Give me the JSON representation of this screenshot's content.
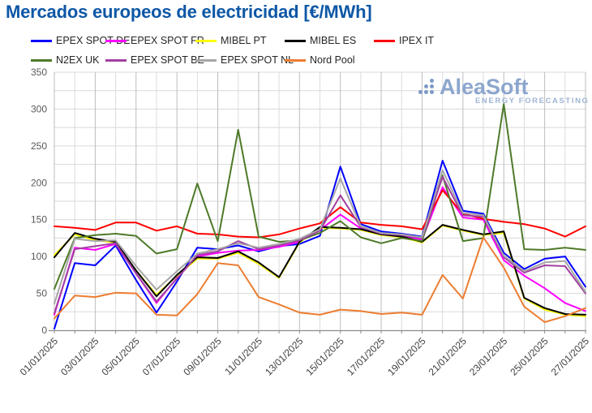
{
  "header": {
    "title": "Mercados europeos de electricidad [€/MWh]",
    "title_color": "#0D57A6"
  },
  "logo": {
    "name": "AleaSoft",
    "subtitle": "ENERGY FORECASTING",
    "name_color": "#8CA6CE",
    "subtitle_color": "#9FB5D6",
    "dots_color": "#7C9AC8"
  },
  "chart_data": {
    "type": "line",
    "title": "Mercados europeos de electricidad [€/MWh]",
    "xlabel": "",
    "ylabel": "",
    "ylim": [
      0,
      350
    ],
    "y_ticks": [
      0,
      50,
      100,
      150,
      200,
      250,
      300,
      350
    ],
    "grid": "on",
    "legend_position": "top",
    "x": [
      "01/01/2025",
      "02/01/2025",
      "03/01/2025",
      "04/01/2025",
      "05/01/2025",
      "06/01/2025",
      "07/01/2025",
      "08/01/2025",
      "09/01/2025",
      "10/01/2025",
      "11/01/2025",
      "12/01/2025",
      "13/01/2025",
      "14/01/2025",
      "15/01/2025",
      "16/01/2025",
      "17/01/2025",
      "18/01/2025",
      "19/01/2025",
      "20/01/2025",
      "21/01/2025",
      "22/01/2025",
      "23/01/2025",
      "24/01/2025",
      "25/01/2025",
      "26/01/2025",
      "27/01/2025"
    ],
    "x_tick_labels_shown": [
      "01/01/2025",
      "03/01/2025",
      "05/01/2025",
      "07/01/2025",
      "09/01/2025",
      "11/01/2025",
      "13/01/2025",
      "15/01/2025",
      "17/01/2025",
      "19/01/2025",
      "21/01/2025",
      "23/01/2025",
      "25/01/2025",
      "27/01/2025"
    ],
    "series": [
      {
        "name": "EPEX SPOT DE",
        "color": "#0000FF",
        "values": [
          2,
          91,
          88,
          115,
          68,
          24,
          66,
          112,
          110,
          115,
          107,
          114,
          117,
          128,
          222,
          144,
          134,
          131,
          127,
          230,
          162,
          158,
          105,
          83,
          97,
          100,
          59
        ]
      },
      {
        "name": "EPEX SPOT FR",
        "color": "#FF00FF",
        "values": [
          21,
          112,
          109,
          117,
          77,
          37,
          71,
          100,
          105,
          108,
          109,
          113,
          120,
          136,
          157,
          138,
          130,
          128,
          123,
          194,
          153,
          150,
          95,
          74,
          57,
          37,
          26
        ]
      },
      {
        "name": "MIBEL PT",
        "color": "#FFFF00",
        "values": [
          102,
          130,
          122,
          119,
          81,
          48,
          74,
          97,
          97,
          105,
          90,
          71,
          119,
          139,
          138,
          136,
          129,
          126,
          119,
          142,
          135,
          129,
          132,
          43,
          28,
          21,
          19
        ]
      },
      {
        "name": "MIBEL ES",
        "color": "#000000",
        "values": [
          99,
          132,
          124,
          120,
          81,
          46,
          75,
          99,
          98,
          107,
          92,
          72,
          120,
          140,
          139,
          137,
          130,
          127,
          120,
          143,
          136,
          130,
          134,
          44,
          30,
          22,
          21
        ]
      },
      {
        "name": "IPEX IT",
        "color": "#FF0000",
        "values": [
          141,
          139,
          136,
          146,
          146,
          135,
          141,
          131,
          130,
          127,
          126,
          130,
          138,
          145,
          167,
          146,
          143,
          141,
          137,
          190,
          158,
          151,
          147,
          144,
          138,
          127,
          141
        ]
      },
      {
        "name": "N2EX UK",
        "color": "#4E7A28",
        "values": [
          56,
          125,
          129,
          131,
          128,
          104,
          110,
          199,
          121,
          272,
          127,
          120,
          122,
          132,
          148,
          126,
          118,
          125,
          121,
          210,
          121,
          125,
          307,
          110,
          109,
          112,
          109
        ]
      },
      {
        "name": "EPEX SPOT BE",
        "color": "#A140A1",
        "values": [
          23,
          110,
          114,
          118,
          77,
          39,
          70,
          102,
          107,
          121,
          110,
          115,
          122,
          135,
          183,
          140,
          131,
          129,
          125,
          208,
          156,
          154,
          99,
          78,
          88,
          87,
          50
        ]
      },
      {
        "name": "EPEX SPOT NL",
        "color": "#A6A6A6",
        "values": [
          36,
          124,
          121,
          122,
          87,
          55,
          80,
          104,
          110,
          118,
          112,
          117,
          124,
          137,
          206,
          141,
          132,
          130,
          126,
          217,
          159,
          156,
          101,
          80,
          92,
          94,
          52
        ]
      },
      {
        "name": "Nord Pool",
        "color": "#ED7D31",
        "values": [
          16,
          47,
          45,
          51,
          50,
          21,
          20,
          49,
          91,
          88,
          45,
          35,
          24,
          21,
          28,
          26,
          22,
          24,
          21,
          75,
          43,
          126,
          85,
          32,
          11,
          19,
          30
        ]
      }
    ],
    "gridline_color_minor": "#DCDCDC",
    "gridline_color_major": "#BDBDBD",
    "gridline_color_horizontal": "#D9D9D9",
    "axis_line_color": "#8C8C8C"
  }
}
